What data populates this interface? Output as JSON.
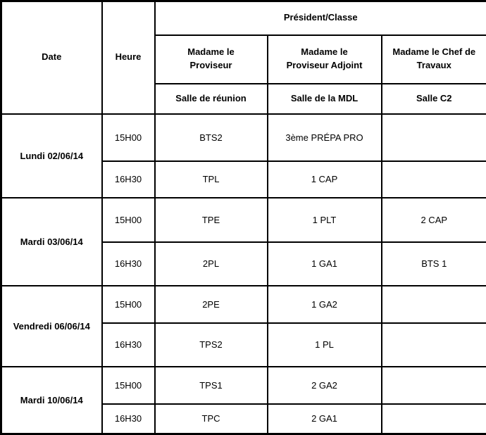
{
  "table": {
    "header": {
      "date": "Date",
      "heure": "Heure",
      "president_classe": "Président/Classe",
      "columns": [
        {
          "president": "Madame le\nProviseur",
          "salle": "Salle de réunion"
        },
        {
          "president": "Madame le\nProviseur Adjoint",
          "salle": "Salle de la MDL"
        },
        {
          "president": "Madame le Chef de\nTravaux",
          "salle": "Salle C2"
        }
      ]
    },
    "groups": [
      {
        "date": "Lundi 02/06/14",
        "rows": [
          {
            "heure": "15H00",
            "cells": [
              "BTS2",
              "3ème PRÉPA PRO",
              ""
            ]
          },
          {
            "heure": "16H30",
            "cells": [
              "TPL",
              "1 CAP",
              ""
            ]
          }
        ]
      },
      {
        "date": "Mardi 03/06/14",
        "rows": [
          {
            "heure": "15H00",
            "cells": [
              "TPE",
              "1 PLT",
              "2 CAP"
            ]
          },
          {
            "heure": "16H30",
            "cells": [
              "2PL",
              "1 GA1",
              "BTS 1"
            ]
          }
        ]
      },
      {
        "date": "Vendredi 06/06/14",
        "rows": [
          {
            "heure": "15H00",
            "cells": [
              "2PE",
              "1 GA2",
              ""
            ]
          },
          {
            "heure": "16H30",
            "cells": [
              "TPS2",
              "1 PL",
              ""
            ]
          }
        ]
      },
      {
        "date": "Mardi 10/06/14",
        "rows": [
          {
            "heure": "15H00",
            "cells": [
              "TPS1",
              "2 GA2",
              ""
            ]
          },
          {
            "heure": "16H30",
            "cells": [
              "TPC",
              "2 GA1",
              ""
            ]
          }
        ]
      }
    ]
  },
  "colors": {
    "border": "#000000",
    "text": "#000000",
    "background": "#ffffff"
  }
}
